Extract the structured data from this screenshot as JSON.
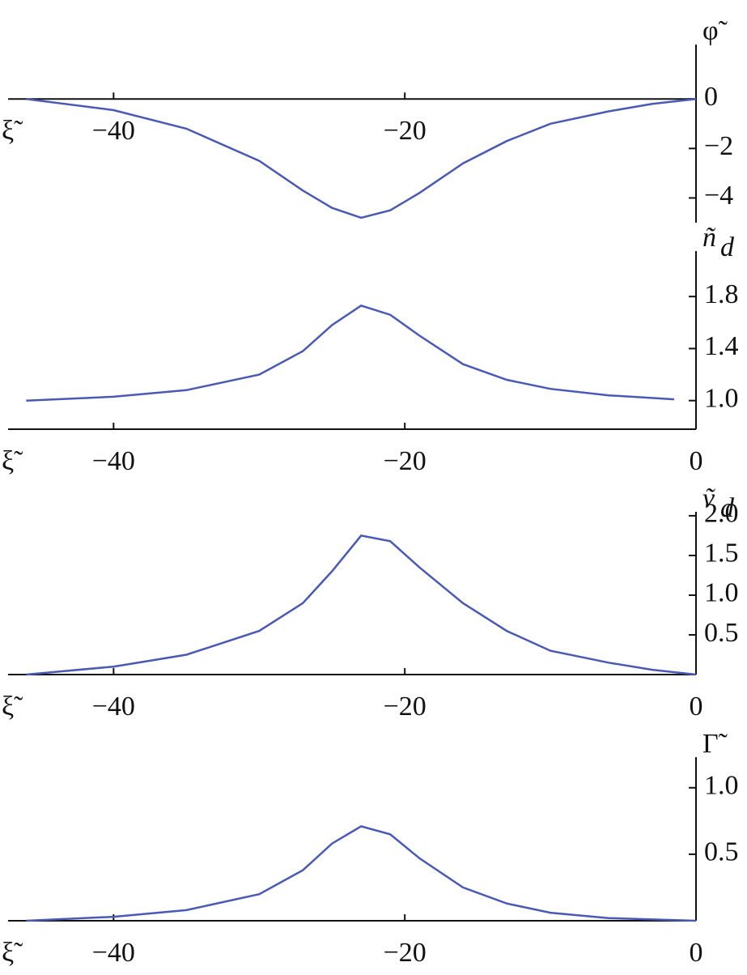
{
  "chart_data": [
    {
      "type": "line",
      "x_label": "ξ̃",
      "y_label": "φ̃",
      "x": [
        -46,
        -40,
        -35,
        -30,
        -27,
        -25,
        -23,
        -21,
        -19,
        -16,
        -13,
        -10,
        -6,
        -3,
        0
      ],
      "series": [
        {
          "color": "#4a5ab4",
          "values": [
            0,
            -0.45,
            -1.2,
            -2.5,
            -3.7,
            -4.4,
            -4.8,
            -4.5,
            -3.8,
            -2.6,
            -1.7,
            -1.0,
            -0.5,
            -0.2,
            0
          ]
        }
      ],
      "xlim": [
        -46.8,
        0
      ],
      "ylim": [
        -5,
        2.2
      ],
      "xticks": [
        {
          "value": -40,
          "label": "−40"
        },
        {
          "value": -20,
          "label": "−20"
        }
      ],
      "yticks": [
        0,
        {
          "value": -2,
          "label": "−2"
        },
        {
          "value": -4,
          "label": "−4"
        }
      ]
    },
    {
      "type": "line",
      "x_label": "ξ̃",
      "y_label": "ñ",
      "y_label_sub": "d",
      "x": [
        -46,
        -40,
        -35,
        -30,
        -27,
        -25,
        -23,
        -21,
        -19,
        -16,
        -13,
        -10,
        -6,
        -1.5
      ],
      "series": [
        {
          "color": "#4a5ab4",
          "values": [
            1.0,
            1.03,
            1.08,
            1.2,
            1.38,
            1.58,
            1.73,
            1.66,
            1.5,
            1.28,
            1.16,
            1.09,
            1.04,
            1.01
          ]
        }
      ],
      "xlim": [
        -46.8,
        0
      ],
      "ylim": [
        0.78,
        2.15
      ],
      "xticks": [
        {
          "value": -40,
          "label": "−40"
        },
        {
          "value": -20,
          "label": "−20"
        },
        0
      ],
      "yticks": [
        {
          "value": 1,
          "label": "1.0"
        },
        1.4,
        1.8
      ]
    },
    {
      "type": "line",
      "x_label": "ξ̃",
      "y_label": "ṽ",
      "y_label_sub": "d",
      "x": [
        -46,
        -40,
        -35,
        -30,
        -27,
        -25,
        -23,
        -21,
        -19,
        -16,
        -13,
        -10,
        -6,
        -3,
        0
      ],
      "series": [
        {
          "color": "#4a5ab4",
          "values": [
            0,
            0.1,
            0.25,
            0.55,
            0.9,
            1.3,
            1.75,
            1.68,
            1.35,
            0.9,
            0.55,
            0.3,
            0.15,
            0.06,
            0
          ]
        }
      ],
      "xlim": [
        -46.8,
        0
      ],
      "ylim": [
        0,
        2.05
      ],
      "xticks": [
        {
          "value": -40,
          "label": "−40"
        },
        {
          "value": -20,
          "label": "−20"
        },
        0
      ],
      "yticks": [
        0.5,
        {
          "value": 1,
          "label": "1.0"
        },
        1.5,
        {
          "value": 2,
          "label": "2.0"
        }
      ]
    },
    {
      "type": "line",
      "x_label": "ξ̃",
      "y_label": "Γ̃",
      "x": [
        -46,
        -40,
        -35,
        -30,
        -27,
        -25,
        -23,
        -21,
        -19,
        -16,
        -13,
        -10,
        -6,
        -3,
        0
      ],
      "series": [
        {
          "color": "#4a5ab4",
          "values": [
            0,
            0.03,
            0.08,
            0.2,
            0.38,
            0.58,
            0.71,
            0.65,
            0.47,
            0.25,
            0.13,
            0.06,
            0.02,
            0.01,
            0
          ]
        }
      ],
      "xlim": [
        -46.8,
        0
      ],
      "ylim": [
        0,
        1.23
      ],
      "xticks": [
        {
          "value": -40,
          "label": "−40"
        },
        {
          "value": -20,
          "label": "−20"
        },
        0
      ],
      "yticks": [
        0.5,
        {
          "value": 1,
          "label": "1.0"
        }
      ]
    }
  ]
}
